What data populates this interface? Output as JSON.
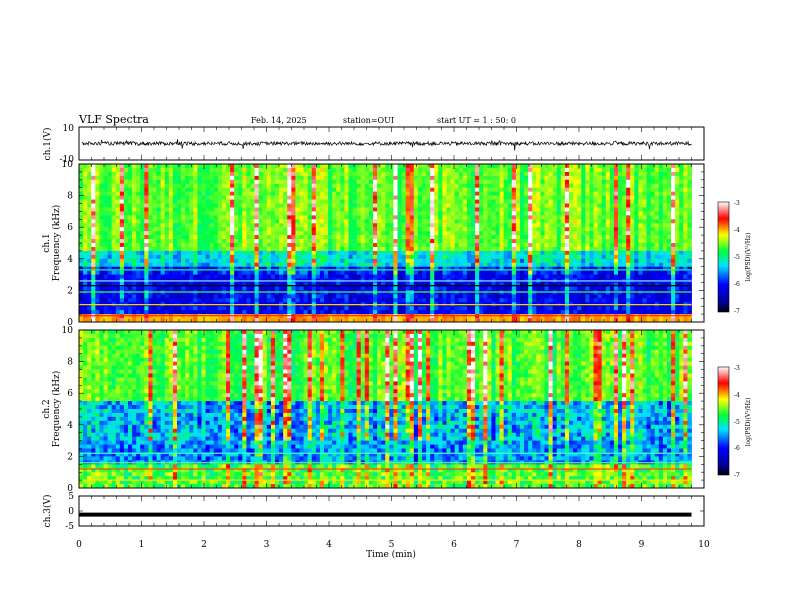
{
  "header": {
    "title": "VLF Spectra",
    "date": "Feb. 14, 2025",
    "station": "station=OUI",
    "start": "start UT =  1 : 50: 0"
  },
  "chart_data": [
    {
      "type": "line",
      "panel": "ch1-waveform",
      "ylabel": "ch.1(V)",
      "ylim": [
        -10,
        10
      ],
      "yticks": [
        "10",
        "-10"
      ],
      "description_values": {
        "baseline": 0
      }
    },
    {
      "type": "heatmap",
      "panel": "ch1-spectrogram",
      "ylabel_line1": "ch.1",
      "ylabel_line2": "Frequency (kHz)",
      "ylim": [
        0,
        10
      ],
      "yticks": [
        "0",
        "2",
        "4",
        "6",
        "8",
        "10"
      ],
      "colorbar": {
        "label": "log(PSD)(V²/Hz)",
        "min": -7,
        "max": -3,
        "ticks": [
          "-3",
          "-4",
          "-5",
          "-6",
          "-7"
        ]
      }
    },
    {
      "type": "heatmap",
      "panel": "ch2-spectrogram",
      "ylabel_line1": "ch.2",
      "ylabel_line2": "Frequency (kHz)",
      "ylim": [
        0,
        10
      ],
      "yticks": [
        "0",
        "2",
        "4",
        "6",
        "8",
        "10"
      ],
      "colorbar": {
        "label": "log(PSD)(V²/Hz)",
        "min": -7,
        "max": -3,
        "ticks": [
          "-3",
          "-4",
          "-5",
          "-6",
          "-7"
        ]
      }
    },
    {
      "type": "line",
      "panel": "ch3-waveform",
      "ylabel": "ch.3(V)",
      "ylim": [
        -5,
        5
      ],
      "yticks": [
        "5",
        "0",
        "-5"
      ],
      "series": [
        {
          "x": [
            0,
            9.8
          ],
          "y": [
            -1.2,
            -1.2
          ]
        }
      ]
    }
  ],
  "xaxis": {
    "label": "Time (min)",
    "ticks": [
      "0",
      "1",
      "2",
      "3",
      "4",
      "5",
      "6",
      "7",
      "8",
      "9",
      "10"
    ],
    "xlim": [
      0,
      10
    ],
    "data_end": 9.8
  }
}
